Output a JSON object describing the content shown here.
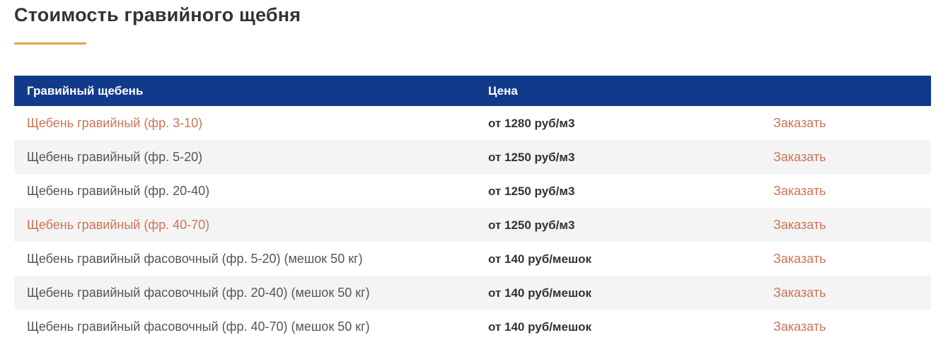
{
  "page": {
    "title": "Стоимость гравийного щебня"
  },
  "colors": {
    "header_bg": "#113a8b",
    "accent_gold": "#dca73e",
    "link_orange": "#cd7457",
    "row_alt_bg": "#f4f4f4"
  },
  "table": {
    "headers": {
      "name": "Гравийный щебень",
      "price": "Цена"
    },
    "rows": [
      {
        "name": "Щебень гравийный (фр. 3-10)",
        "price": "от 1280 руб/м3",
        "order": "Заказать",
        "name_is_link": true
      },
      {
        "name": "Щебень гравийный (фр. 5-20)",
        "price": "от 1250 руб/м3",
        "order": "Заказать",
        "name_is_link": false
      },
      {
        "name": "Щебень гравийный (фр. 20-40)",
        "price": "от 1250 руб/м3",
        "order": "Заказать",
        "name_is_link": false
      },
      {
        "name": "Щебень гравийный (фр. 40-70)",
        "price": "от 1250 руб/м3",
        "order": "Заказать",
        "name_is_link": true
      },
      {
        "name": "Щебень гравийный фасовочный (фр. 5-20) (мешок 50 кг)",
        "price": "от 140 руб/мешок",
        "order": "Заказать",
        "name_is_link": false
      },
      {
        "name": "Щебень гравийный фасовочный (фр. 20-40) (мешок 50 кг)",
        "price": "от 140 руб/мешок",
        "order": "Заказать",
        "name_is_link": false
      },
      {
        "name": "Щебень гравийный фасовочный (фр. 40-70) (мешок 50 кг)",
        "price": "от 140 руб/мешок",
        "order": "Заказать",
        "name_is_link": false
      }
    ]
  }
}
